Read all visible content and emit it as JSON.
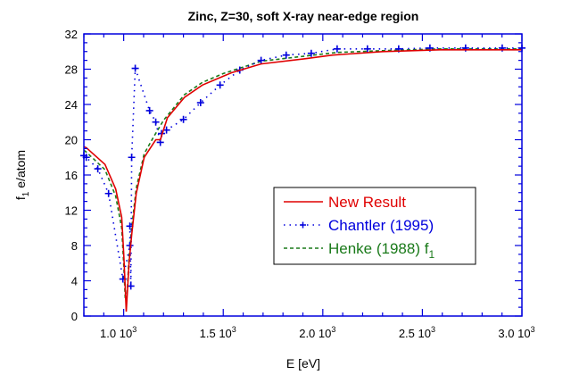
{
  "chart_data": {
    "type": "line",
    "title": "Zinc, Z=30, soft X-ray near-edge region",
    "xlabel": "E [eV]",
    "ylabel": {
      "main": "f",
      "sub": "1",
      "rest": " e/atom"
    },
    "xlim": [
      800,
      3000
    ],
    "ylim": [
      0,
      32
    ],
    "x_ticks": [
      {
        "value": 1000,
        "label": "1.0 10",
        "exp": "3"
      },
      {
        "value": 1500,
        "label": "1.5 10",
        "exp": "3"
      },
      {
        "value": 2000,
        "label": "2.0 10",
        "exp": "3"
      },
      {
        "value": 2500,
        "label": "2.5 10",
        "exp": "3"
      },
      {
        "value": 3000,
        "label": "3.0 10",
        "exp": "3"
      }
    ],
    "y_ticks": [
      0,
      4,
      8,
      12,
      16,
      20,
      24,
      28,
      32
    ],
    "grid": false,
    "legend_position": "center-right",
    "series": [
      {
        "name": "New Result",
        "color": "#e00000",
        "style": "solid",
        "points": [
          [
            800,
            19.2
          ],
          [
            812,
            19.1
          ],
          [
            906,
            17.2
          ],
          [
            960,
            14.4
          ],
          [
            990,
            11.2
          ],
          [
            1000,
            7.2
          ],
          [
            1006,
            4.1
          ],
          [
            1013,
            0.5
          ],
          [
            1027,
            6.1
          ],
          [
            1040,
            9.2
          ],
          [
            1063,
            13.9
          ],
          [
            1103,
            18.0
          ],
          [
            1161,
            20.0
          ],
          [
            1184,
            20.0
          ],
          [
            1220,
            22.5
          ],
          [
            1305,
            24.8
          ],
          [
            1395,
            26.2
          ],
          [
            1500,
            27.2
          ],
          [
            1543,
            27.6
          ],
          [
            1690,
            28.6
          ],
          [
            1915,
            29.2
          ],
          [
            2049,
            29.6
          ],
          [
            2300,
            30.0
          ],
          [
            2587,
            30.2
          ],
          [
            3000,
            30.2
          ]
        ]
      },
      {
        "name": "Chantler (1995)",
        "color": "#0000dd",
        "style": "dotted-plus",
        "points": [
          [
            800,
            18.2
          ],
          [
            812,
            18.0
          ],
          [
            870,
            16.7
          ],
          [
            924,
            13.9
          ],
          [
            996,
            4.2
          ],
          [
            1031,
            8.0
          ],
          [
            1031,
            10.2
          ],
          [
            1036,
            3.4
          ],
          [
            1040,
            18.0
          ],
          [
            1058,
            28.1
          ],
          [
            1130,
            23.3
          ],
          [
            1161,
            22.0
          ],
          [
            1184,
            19.7
          ],
          [
            1190,
            20.7
          ],
          [
            1215,
            21.1
          ],
          [
            1300,
            22.3
          ],
          [
            1386,
            24.2
          ],
          [
            1484,
            26.2
          ],
          [
            1583,
            27.9
          ],
          [
            1690,
            29.0
          ],
          [
            1816,
            29.6
          ],
          [
            1942,
            29.8
          ],
          [
            2072,
            30.3
          ],
          [
            2224,
            30.3
          ],
          [
            2381,
            30.3
          ],
          [
            2538,
            30.4
          ],
          [
            2717,
            30.4
          ],
          [
            2901,
            30.4
          ],
          [
            3000,
            30.4
          ]
        ]
      },
      {
        "name": "Henke (1988) f",
        "name_sub": "1",
        "color": "#1a7a1a",
        "style": "dashed",
        "points": [
          [
            800,
            18.8
          ],
          [
            812,
            18.6
          ],
          [
            906,
            16.6
          ],
          [
            960,
            13.6
          ],
          [
            990,
            10.0
          ],
          [
            1000,
            6.0
          ],
          [
            1008,
            2.0
          ],
          [
            1015,
            1.8
          ],
          [
            1027,
            6.8
          ],
          [
            1040,
            10.0
          ],
          [
            1063,
            14.5
          ],
          [
            1103,
            18.4
          ],
          [
            1150,
            20.3
          ],
          [
            1200,
            22.2
          ],
          [
            1305,
            25.1
          ],
          [
            1395,
            26.5
          ],
          [
            1500,
            27.5
          ],
          [
            1690,
            28.9
          ],
          [
            1915,
            29.5
          ],
          [
            2072,
            29.9
          ],
          [
            2300,
            30.1
          ],
          [
            2587,
            30.3
          ],
          [
            3000,
            30.3
          ]
        ]
      }
    ]
  }
}
